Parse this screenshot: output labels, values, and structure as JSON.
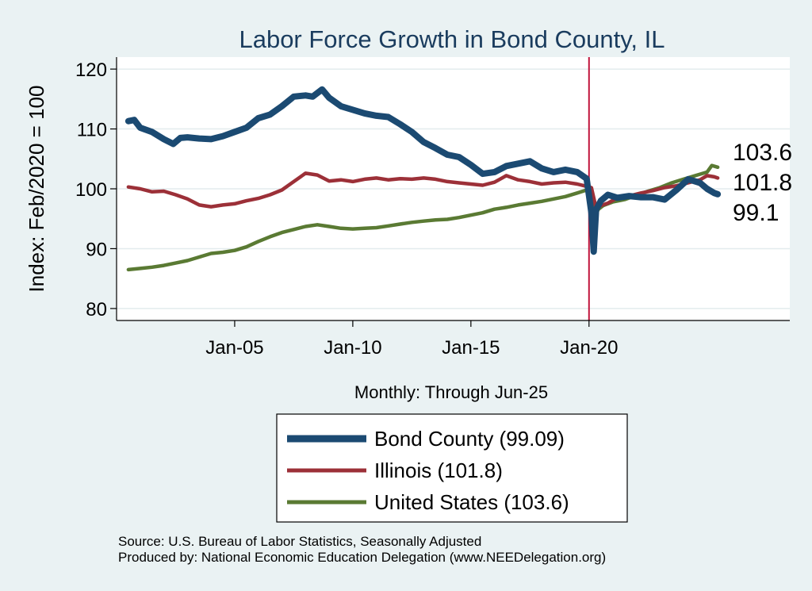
{
  "chart_data": {
    "type": "line",
    "title": "Labor Force Growth in Bond  County, IL",
    "ylabel": "Index: Feb/2020 = 100",
    "xlabel": "Monthly: Through Jun-25",
    "ylim": [
      78,
      122
    ],
    "yticks": [
      80,
      90,
      100,
      110,
      120
    ],
    "xlim": [
      2000.0,
      2028.5
    ],
    "xticks": [
      {
        "value": 2005.0,
        "label": "Jan-05"
      },
      {
        "value": 2010.0,
        "label": "Jan-10"
      },
      {
        "value": 2015.0,
        "label": "Jan-15"
      },
      {
        "value": 2020.0,
        "label": "Jan-20"
      }
    ],
    "vline": {
      "x": 2020.0,
      "color": "#c0143c"
    },
    "end_labels": [
      "103.6",
      "101.8",
      "99.1"
    ],
    "series": [
      {
        "name": "Bond  County (99.09)",
        "color": "#1b4a72",
        "x": [
          2000.5,
          2000.75,
          2001.0,
          2001.5,
          2002.0,
          2002.4,
          2002.7,
          2003.0,
          2003.5,
          2004.0,
          2004.5,
          2005.0,
          2005.5,
          2006.0,
          2006.5,
          2007.0,
          2007.5,
          2008.0,
          2008.3,
          2008.7,
          2009.0,
          2009.5,
          2010.0,
          2010.5,
          2011.0,
          2011.5,
          2012.0,
          2012.5,
          2013.0,
          2013.5,
          2014.0,
          2014.5,
          2015.0,
          2015.5,
          2016.0,
          2016.5,
          2017.0,
          2017.5,
          2018.0,
          2018.5,
          2019.0,
          2019.5,
          2019.9,
          2020.1,
          2020.2,
          2020.3,
          2020.5,
          2020.8,
          2021.2,
          2021.7,
          2022.2,
          2022.7,
          2023.2,
          2023.7,
          2024.2,
          2024.7,
          2025.0,
          2025.3,
          2025.45
        ],
        "y": [
          111.3,
          111.5,
          110.2,
          109.5,
          108.3,
          107.5,
          108.5,
          108.6,
          108.4,
          108.3,
          108.8,
          109.5,
          110.2,
          111.8,
          112.4,
          113.8,
          115.4,
          115.6,
          115.4,
          116.6,
          115.2,
          113.8,
          113.2,
          112.6,
          112.2,
          112.0,
          110.8,
          109.5,
          107.8,
          106.8,
          105.7,
          105.3,
          104.0,
          102.5,
          102.8,
          103.8,
          104.2,
          104.6,
          103.4,
          102.8,
          103.2,
          102.8,
          101.7,
          96.0,
          89.5,
          96.5,
          98.0,
          99.0,
          98.5,
          98.8,
          98.6,
          98.6,
          98.2,
          99.8,
          101.6,
          101.0,
          100.0,
          99.3,
          99.1
        ]
      },
      {
        "name": "Illinois (101.8)",
        "color": "#9c3038",
        "x": [
          2000.5,
          2001.0,
          2001.5,
          2002.0,
          2002.5,
          2003.0,
          2003.5,
          2004.0,
          2004.5,
          2005.0,
          2005.5,
          2006.0,
          2006.5,
          2007.0,
          2007.5,
          2008.0,
          2008.5,
          2009.0,
          2009.5,
          2010.0,
          2010.5,
          2011.0,
          2011.5,
          2012.0,
          2012.5,
          2013.0,
          2013.5,
          2014.0,
          2014.5,
          2015.0,
          2015.5,
          2016.0,
          2016.5,
          2017.0,
          2017.5,
          2018.0,
          2018.5,
          2019.0,
          2019.5,
          2019.8,
          2020.1,
          2020.3,
          2020.5,
          2020.8,
          2021.2,
          2021.7,
          2022.2,
          2022.7,
          2023.2,
          2023.7,
          2024.2,
          2024.7,
          2025.0,
          2025.3,
          2025.45
        ],
        "y": [
          100.3,
          100.0,
          99.5,
          99.6,
          99.0,
          98.3,
          97.3,
          97.0,
          97.3,
          97.5,
          98.0,
          98.4,
          99.0,
          99.8,
          101.2,
          102.6,
          102.3,
          101.3,
          101.5,
          101.2,
          101.6,
          101.8,
          101.5,
          101.7,
          101.6,
          101.8,
          101.6,
          101.2,
          101.0,
          100.8,
          100.6,
          101.1,
          102.2,
          101.5,
          101.2,
          100.8,
          101.0,
          101.1,
          100.8,
          100.5,
          100.2,
          96.8,
          97.2,
          97.6,
          98.5,
          98.8,
          99.3,
          99.7,
          100.2,
          100.5,
          101.0,
          101.5,
          102.2,
          102.0,
          101.8
        ]
      },
      {
        "name": "United States (103.6)",
        "color": "#5a7a33",
        "x": [
          2000.5,
          2001.0,
          2001.5,
          2002.0,
          2002.5,
          2003.0,
          2003.5,
          2004.0,
          2004.5,
          2005.0,
          2005.5,
          2006.0,
          2006.5,
          2007.0,
          2007.5,
          2008.0,
          2008.5,
          2009.0,
          2009.5,
          2010.0,
          2010.5,
          2011.0,
          2011.5,
          2012.0,
          2012.5,
          2013.0,
          2013.5,
          2014.0,
          2014.5,
          2015.0,
          2015.5,
          2016.0,
          2016.5,
          2017.0,
          2017.5,
          2018.0,
          2018.5,
          2019.0,
          2019.5,
          2019.9,
          2020.1,
          2020.25,
          2020.4,
          2020.6,
          2021.0,
          2021.5,
          2022.0,
          2022.5,
          2023.0,
          2023.5,
          2024.0,
          2024.5,
          2025.0,
          2025.2,
          2025.45
        ],
        "y": [
          86.5,
          86.7,
          86.9,
          87.2,
          87.6,
          88.0,
          88.6,
          89.2,
          89.4,
          89.7,
          90.3,
          91.2,
          92.0,
          92.7,
          93.2,
          93.7,
          94.0,
          93.7,
          93.4,
          93.3,
          93.4,
          93.5,
          93.8,
          94.1,
          94.4,
          94.6,
          94.8,
          94.9,
          95.2,
          95.6,
          96.0,
          96.6,
          96.9,
          97.3,
          97.6,
          97.9,
          98.3,
          98.7,
          99.3,
          99.8,
          100.0,
          95.5,
          96.6,
          97.2,
          97.8,
          98.2,
          98.9,
          99.6,
          100.2,
          101.0,
          101.6,
          102.2,
          102.8,
          103.9,
          103.6
        ]
      }
    ],
    "legend": {
      "placement": "bottom-center"
    }
  },
  "footer": {
    "source": "Source: U.S. Bureau of Labor Statistics, Seasonally Adjusted",
    "produced": "Produced by: National Economic Education Delegation (www.NEEDelegation.org)"
  }
}
